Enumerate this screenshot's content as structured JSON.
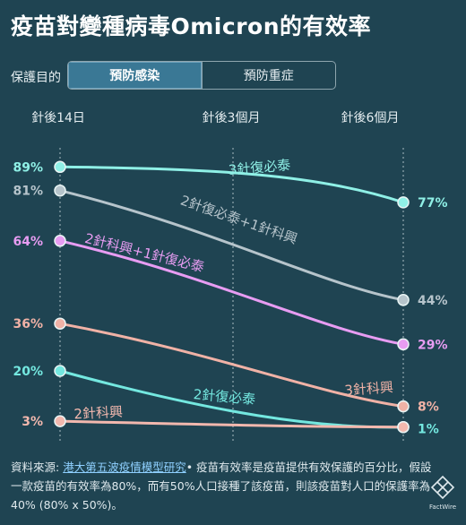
{
  "title": "疫苗對變種病毒Omicron的有效率",
  "controls": {
    "label": "保護目的",
    "options": [
      "預防感染",
      "預防重症"
    ],
    "selected": "預防感染"
  },
  "chart_data": {
    "type": "line",
    "x": [
      "針後14日",
      "針後3個月",
      "針後6個月"
    ],
    "y_unit": "%",
    "series": [
      {
        "name": "3針復必泰",
        "values": [
          89,
          null,
          77
        ],
        "color": "#8ff0e6"
      },
      {
        "name": "2針復必泰+1針科興",
        "values": [
          81,
          null,
          44
        ],
        "color": "#b6c4cb"
      },
      {
        "name": "2針科興+1針復必泰",
        "values": [
          64,
          null,
          29
        ],
        "color": "#e79cf2"
      },
      {
        "name": "3針科興",
        "values": [
          36,
          null,
          8
        ],
        "color": "#f0b2a6"
      },
      {
        "name": "2針復必泰",
        "values": [
          20,
          null,
          1
        ],
        "color": "#74e8e0"
      },
      {
        "name": "2針科興",
        "values": [
          3,
          null,
          1
        ],
        "color": "#f2b8ae"
      }
    ],
    "ylim": [
      0,
      100
    ],
    "grid": "vertical-dotted"
  },
  "source": {
    "prefix": "資料來源: ",
    "link": "港大第五波疫情模型研究",
    "note": "• 疫苗有效率是疫苗提供有效保護的百分比，假設一款疫苗的有效率為80%，而有50%人口接種了該疫苗，則該疫苗對人口的保護率為40% (80% x 50%)。"
  },
  "logo": {
    "text": "FactWire"
  },
  "colors": {
    "background": "#1f4452",
    "active_tab": "#3a7895"
  }
}
